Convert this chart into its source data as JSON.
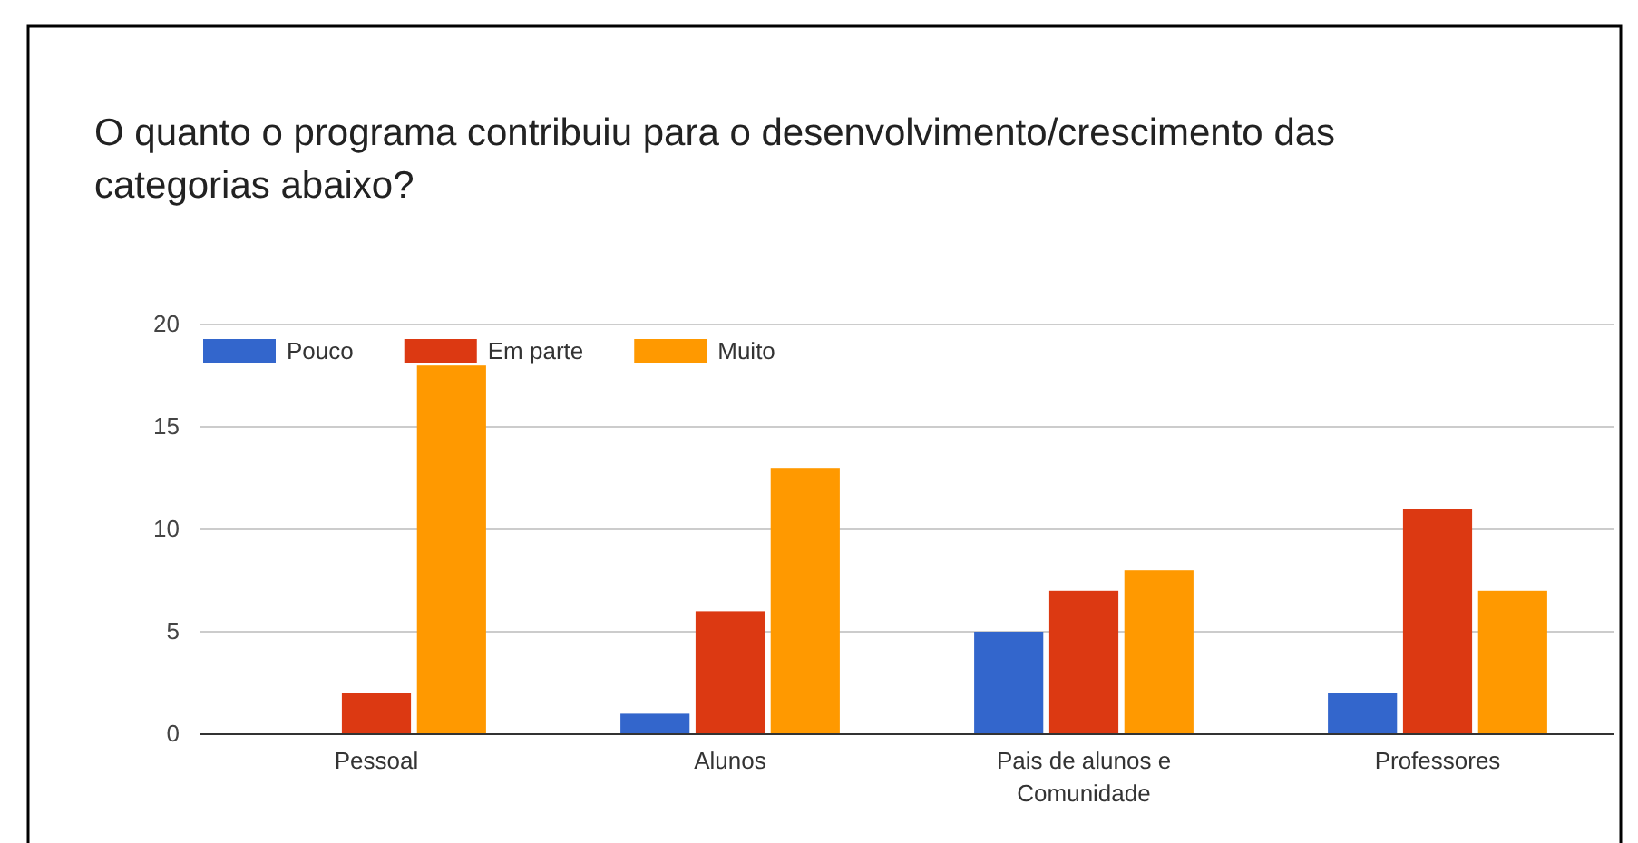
{
  "chart_data": {
    "type": "bar",
    "title": "O quanto o programa contribuiu para o desenvolvimento/crescimento das categorias abaixo?",
    "categories": [
      "Pessoal",
      "Alunos",
      "Pais de alunos e Comunidade",
      "Professores"
    ],
    "series": [
      {
        "name": "Pouco",
        "color": "#3366cc",
        "values": [
          0,
          1,
          5,
          2
        ]
      },
      {
        "name": "Em parte",
        "color": "#dc3912",
        "values": [
          2,
          6,
          7,
          11
        ]
      },
      {
        "name": "Muito",
        "color": "#ff9900",
        "values": [
          18,
          13,
          8,
          7
        ]
      }
    ],
    "ylim": [
      0,
      20
    ],
    "yticks": [
      0,
      5,
      10,
      15,
      20
    ],
    "grid": true,
    "legend": "top left"
  }
}
